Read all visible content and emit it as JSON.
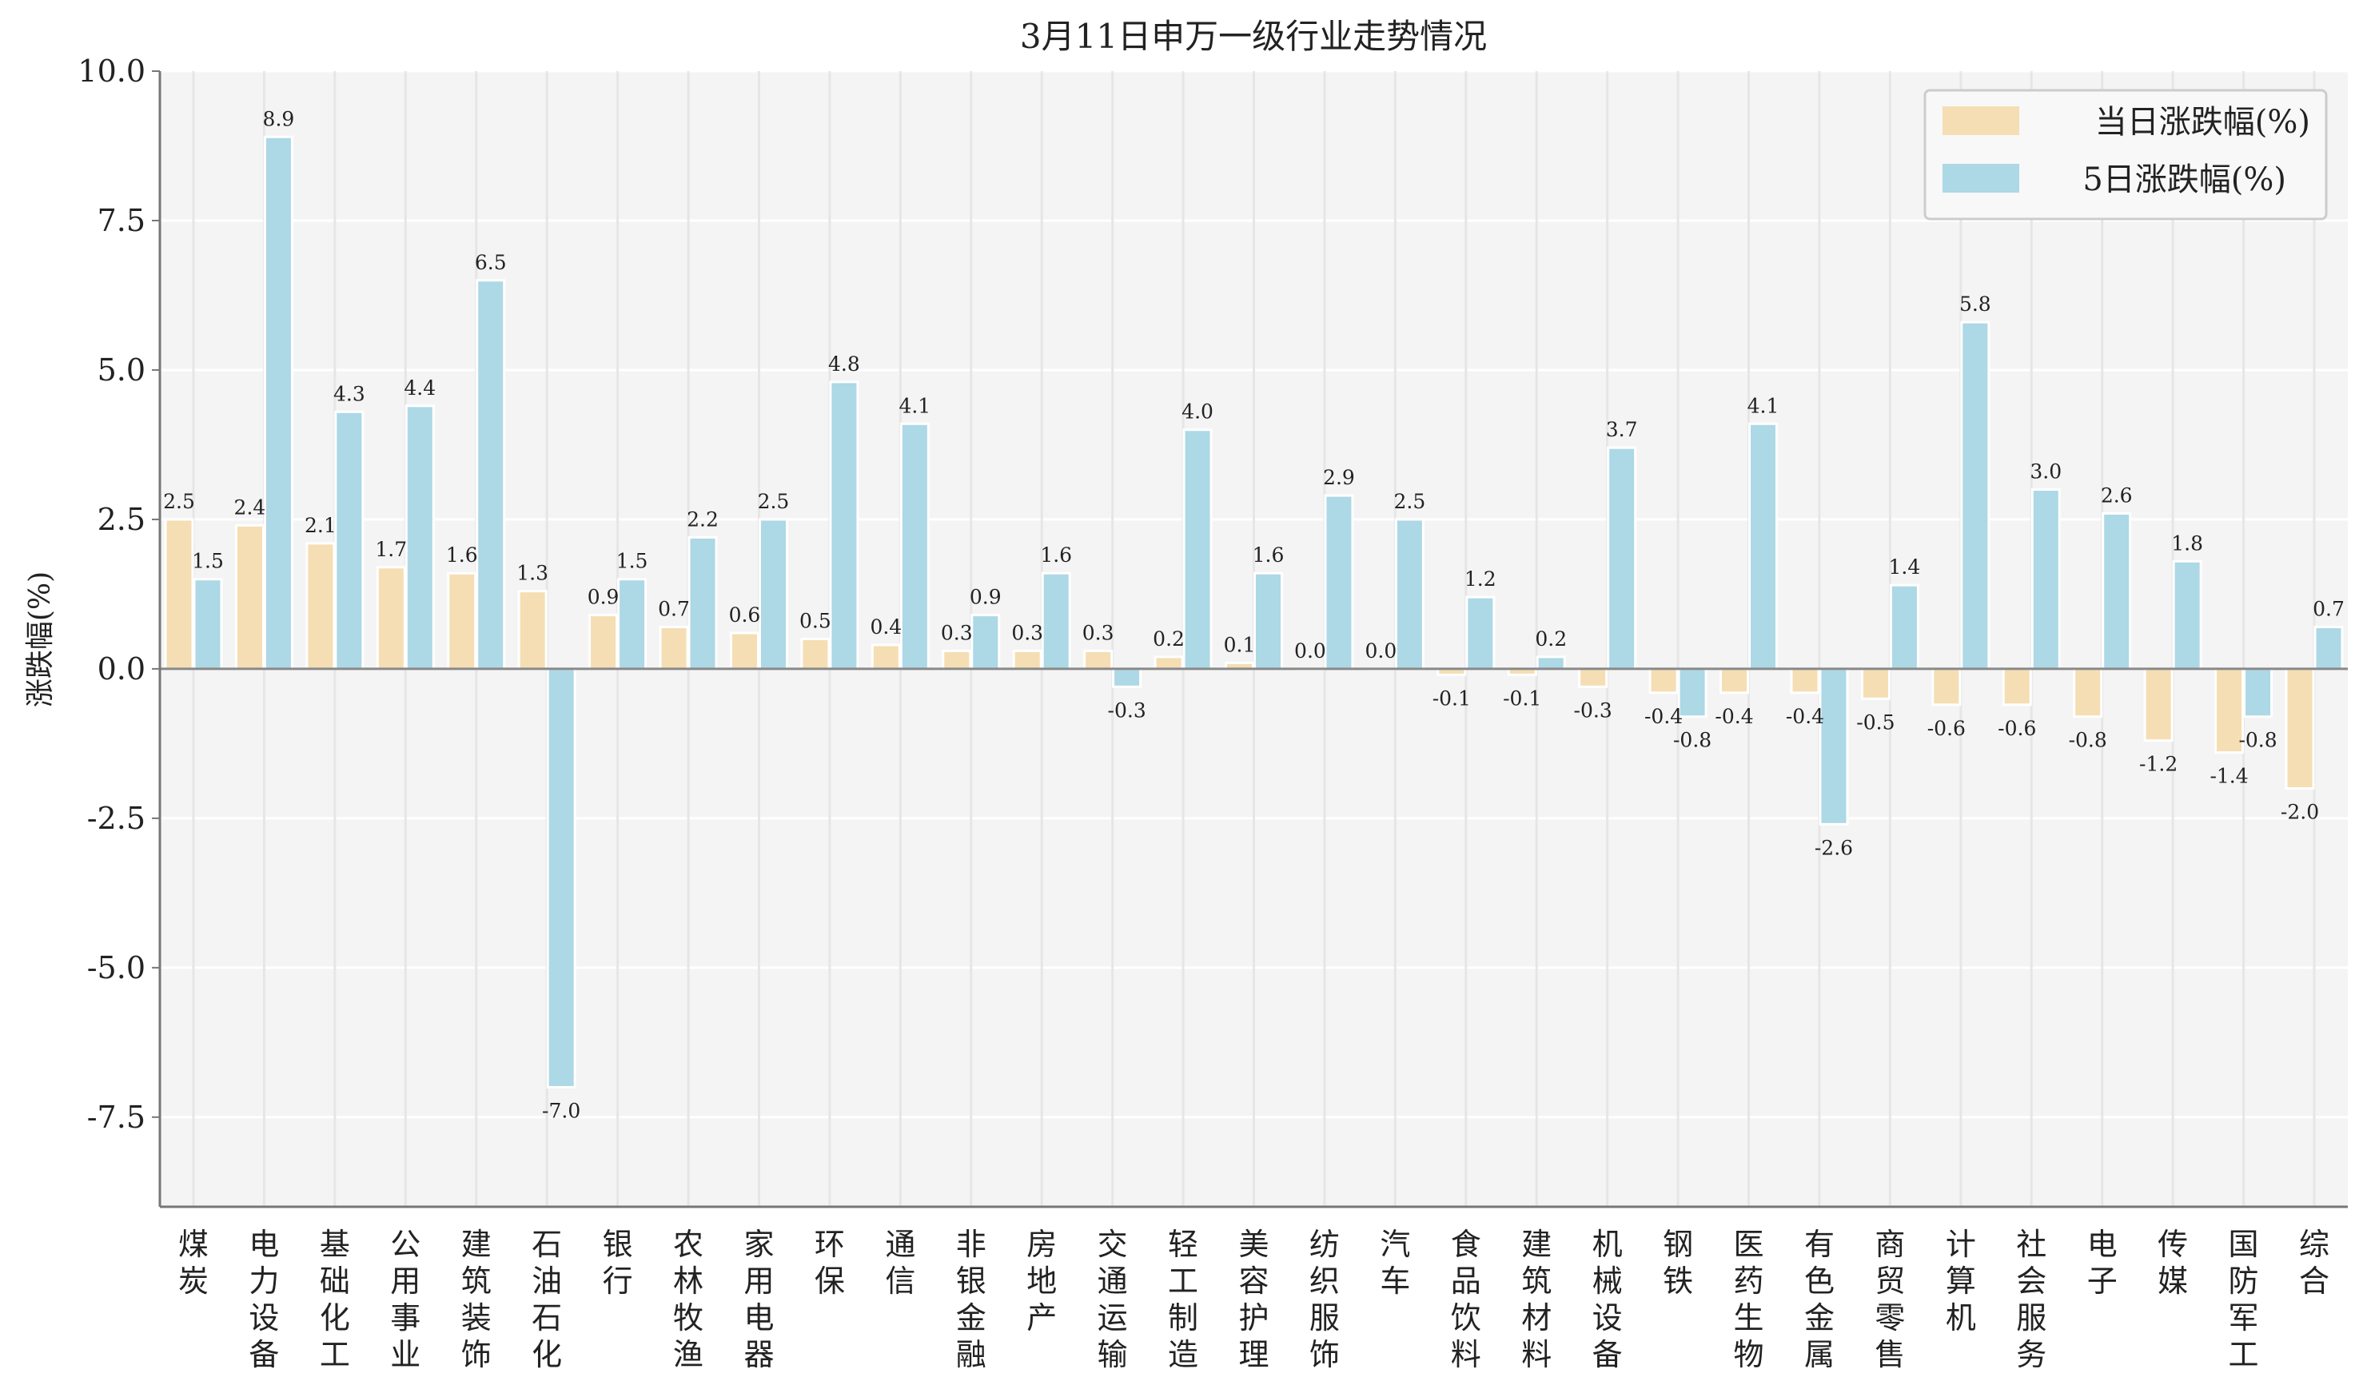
{
  "chart_data": {
    "type": "bar",
    "title": "3月11日申万一级行业走势情况",
    "xlabel": "",
    "ylabel": "涨跌幅(%)",
    "ylim": [
      -9.0,
      10.0
    ],
    "yticks": [
      "-7.5",
      "-5.0",
      "-2.5",
      "0.0",
      "2.5",
      "5.0",
      "7.5",
      "10.0"
    ],
    "grid": true,
    "legend_position": "top-right",
    "categories": [
      "煤炭",
      "电力设备",
      "基础化工",
      "公用事业",
      "建筑装饰",
      "石油石化",
      "银行",
      "农林牧渔",
      "家用电器",
      "环保",
      "通信",
      "非银金融",
      "房地产",
      "交通运输",
      "轻工制造",
      "美容护理",
      "纺织服饰",
      "汽车",
      "食品饮料",
      "建筑材料",
      "机械设备",
      "钢铁",
      "医药生物",
      "有色金属",
      "商贸零售",
      "计算机",
      "社会服务",
      "电子",
      "传媒",
      "国防军工",
      "综合"
    ],
    "series": [
      {
        "name": "当日涨跌幅(%)",
        "color": "#F5DEB3",
        "values": [
          2.5,
          2.4,
          2.1,
          1.7,
          1.6,
          1.3,
          0.9,
          0.7,
          0.6,
          0.5,
          0.4,
          0.3,
          0.3,
          0.3,
          0.2,
          0.1,
          0.0,
          0.0,
          -0.1,
          -0.1,
          -0.3,
          -0.4,
          -0.4,
          -0.4,
          -0.5,
          -0.6,
          -0.6,
          -0.8,
          -1.2,
          -1.4,
          -2.0
        ]
      },
      {
        "name": "5日涨跌幅(%)",
        "color": "#ADD8E6",
        "values": [
          1.5,
          8.9,
          4.3,
          4.4,
          6.5,
          -7.0,
          1.5,
          2.2,
          2.5,
          4.8,
          4.1,
          0.9,
          1.6,
          -0.3,
          4.0,
          1.6,
          2.9,
          2.5,
          1.2,
          0.2,
          3.7,
          -0.8,
          4.1,
          -2.6,
          1.4,
          5.8,
          3.0,
          2.6,
          1.8,
          -0.8,
          0.7
        ]
      }
    ]
  }
}
